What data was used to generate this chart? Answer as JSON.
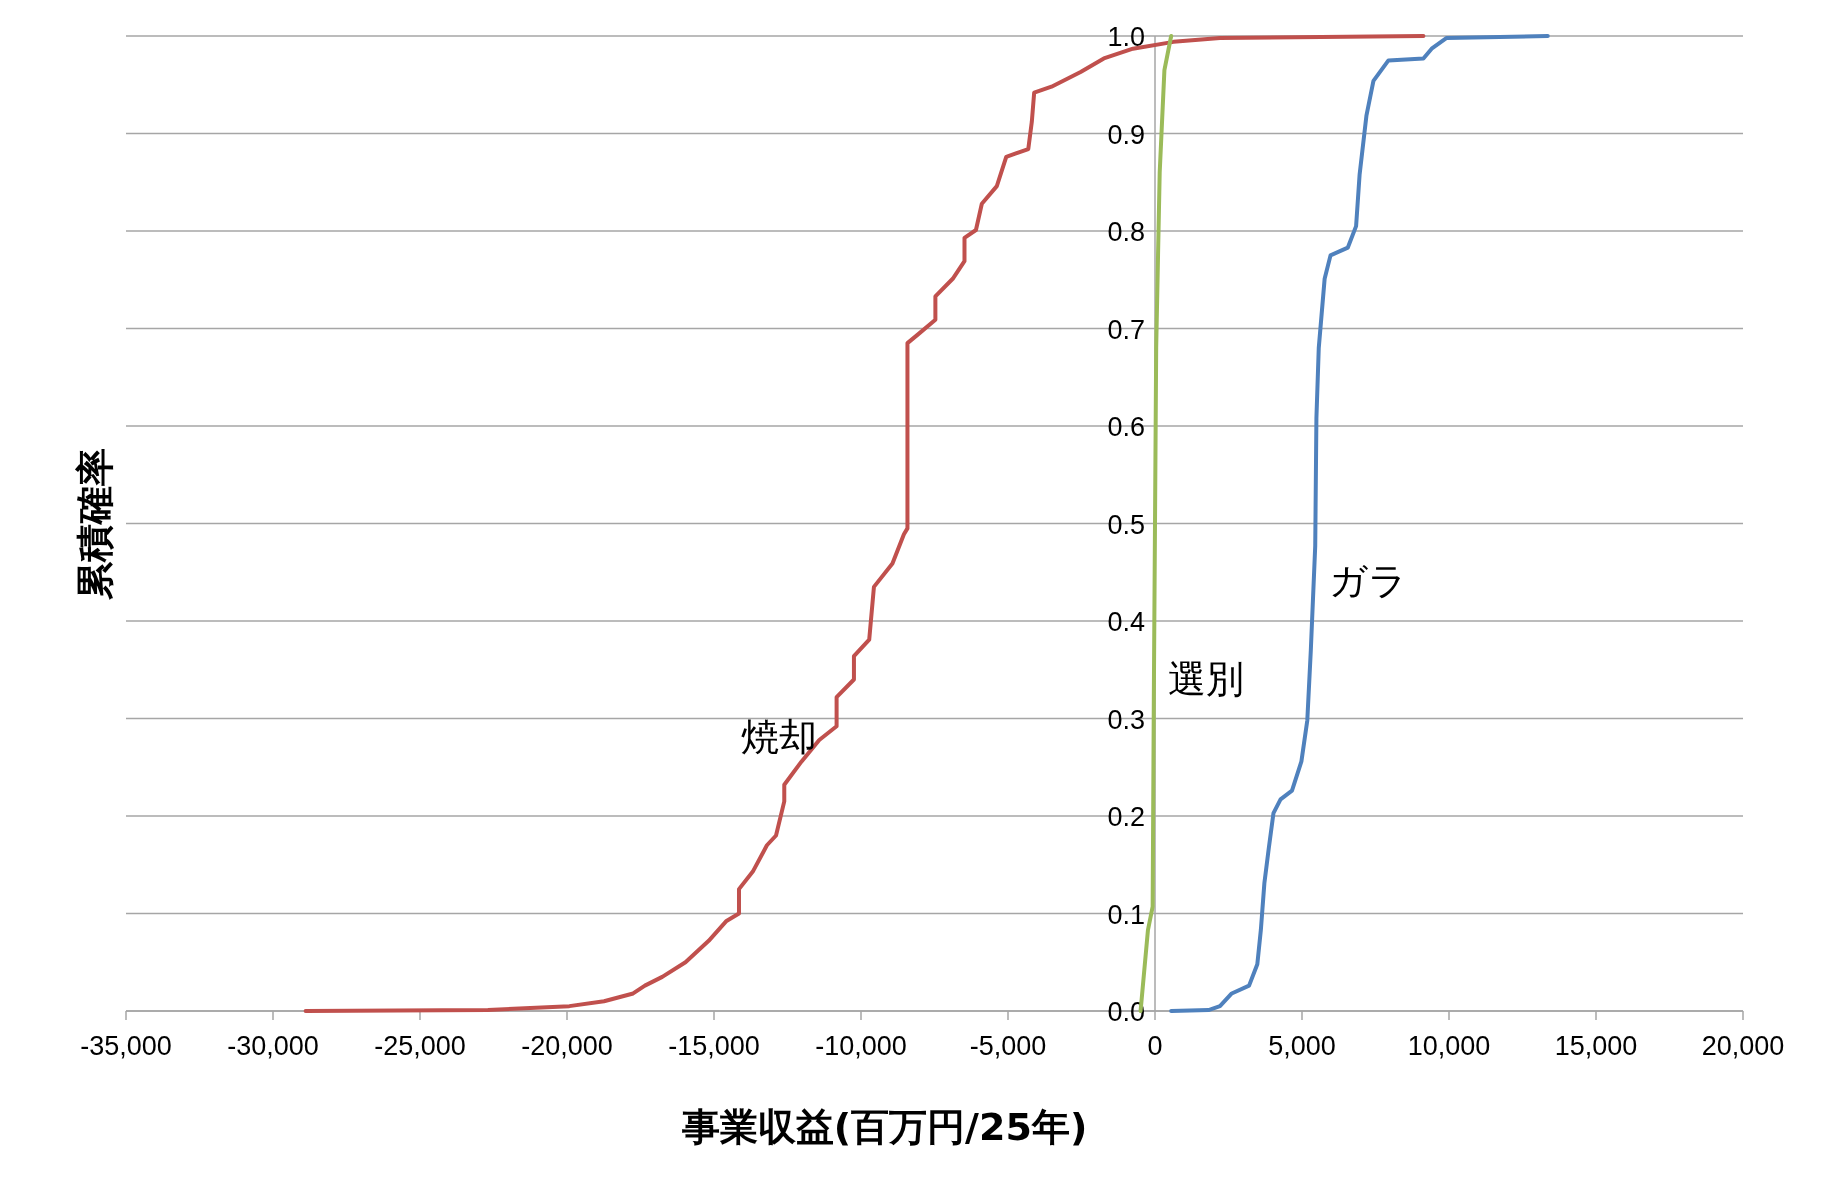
{
  "chart_data": {
    "type": "line",
    "xlabel": "事業収益(百万円/25年)",
    "ylabel": "累積確率",
    "xlim": [
      -35000,
      20000
    ],
    "ylim": [
      0,
      1
    ],
    "xticks": [
      {
        "value": -35000,
        "label": "-35,000"
      },
      {
        "value": -30000,
        "label": "-30,000"
      },
      {
        "value": -25000,
        "label": "-25,000"
      },
      {
        "value": -20000,
        "label": "-20,000"
      },
      {
        "value": -15000,
        "label": "-15,000"
      },
      {
        "value": -10000,
        "label": "-10,000"
      },
      {
        "value": -5000,
        "label": "-5,000"
      },
      0,
      {
        "value": 5000,
        "label": "5,000"
      },
      {
        "value": 10000,
        "label": "10,000"
      },
      {
        "value": 15000,
        "label": "15,000"
      },
      {
        "value": 20000,
        "label": "20,000"
      }
    ],
    "yticks": [
      {
        "value": 0,
        "label": "0.0"
      },
      {
        "value": 0.1,
        "label": "0.1"
      },
      {
        "value": 0.2,
        "label": "0.2"
      },
      {
        "value": 0.3,
        "label": "0.3"
      },
      {
        "value": 0.4,
        "label": "0.4"
      },
      {
        "value": 0.5,
        "label": "0.5"
      },
      {
        "value": 0.6,
        "label": "0.6"
      },
      {
        "value": 0.7,
        "label": "0.7"
      },
      {
        "value": 0.8,
        "label": "0.8"
      },
      {
        "value": 0.9,
        "label": "0.9"
      },
      {
        "value": 1,
        "label": "1.0"
      }
    ],
    "grid": "y",
    "marker": "none",
    "line_style": "solid",
    "legend": false,
    "series": [
      {
        "name": "焼却",
        "color": "#c0504d",
        "x": [
          -28890,
          -22690,
          -19920,
          -18740,
          -17750,
          -17350,
          -16760,
          -15970,
          -15180,
          -14590,
          -14150,
          -14150,
          -13680,
          -13200,
          -12890,
          -12610,
          -12610,
          -12020,
          -11420,
          -10830,
          -10830,
          -10240,
          -10240,
          -9720,
          -9560,
          -8930,
          -8540,
          -8420,
          -8420,
          -8060,
          -7470,
          -7470,
          -6880,
          -6480,
          -6480,
          -6090,
          -5890,
          -5380,
          -5060,
          -4310,
          -4190,
          -4110,
          -3520,
          -2530,
          -1740,
          -750,
          630,
          2210,
          9130
        ],
        "values": [
          0,
          0.001,
          0.005,
          0.01,
          0.018,
          0.026,
          0.035,
          0.05,
          0.072,
          0.092,
          0.1,
          0.125,
          0.143,
          0.17,
          0.18,
          0.215,
          0.232,
          0.256,
          0.278,
          0.292,
          0.322,
          0.34,
          0.364,
          0.381,
          0.435,
          0.459,
          0.489,
          0.495,
          0.685,
          0.694,
          0.709,
          0.733,
          0.751,
          0.769,
          0.793,
          0.801,
          0.828,
          0.846,
          0.876,
          0.884,
          0.912,
          0.942,
          0.948,
          0.963,
          0.977,
          0.987,
          0.994,
          0.998,
          1
        ]
      },
      {
        "name": "選別",
        "color": "#9bbb59",
        "x": [
          -490,
          -240,
          -80,
          -40,
          40,
          160,
          320,
          550
        ],
        "values": [
          0,
          0.083,
          0.107,
          0.32,
          0.68,
          0.86,
          0.965,
          1
        ]
      },
      {
        "name": "ガラ",
        "color": "#4f81bd",
        "x": [
          550,
          1820,
          2210,
          2610,
          3200,
          3480,
          3600,
          3720,
          3870,
          4030,
          4270,
          4660,
          4980,
          5180,
          5300,
          5450,
          5490,
          5570,
          5770,
          5970,
          6560,
          6840,
          6960,
          7190,
          7430,
          7940,
          9130,
          9410,
          9920,
          13360
        ],
        "values": [
          0,
          0.001,
          0.005,
          0.018,
          0.026,
          0.048,
          0.083,
          0.131,
          0.167,
          0.203,
          0.217,
          0.226,
          0.256,
          0.298,
          0.37,
          0.477,
          0.608,
          0.68,
          0.751,
          0.775,
          0.783,
          0.805,
          0.858,
          0.918,
          0.954,
          0.975,
          0.977,
          0.987,
          0.998,
          1
        ]
      }
    ]
  }
}
